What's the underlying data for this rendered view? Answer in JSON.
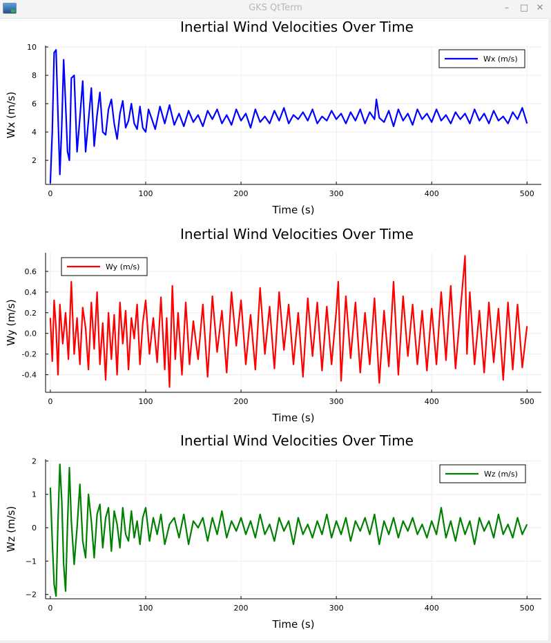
{
  "window": {
    "title": "GKS QtTerm",
    "minimize_icon": "minimize-icon",
    "maximize_icon": "maximize-icon",
    "close_icon": "close-icon",
    "app_icon": "gks-app-icon"
  },
  "chart_data": [
    {
      "type": "line",
      "title": "Inertial Wind Velocities Over Time",
      "xlabel": "Time (s)",
      "ylabel": "Wx (m/s)",
      "xlim": [
        -5,
        515
      ],
      "ylim": [
        0.3,
        10.1
      ],
      "xticks": [
        0,
        100,
        200,
        300,
        400,
        500
      ],
      "xtick_labels": [
        "0",
        "100",
        "200",
        "300",
        "400",
        "500"
      ],
      "yticks": [
        2,
        4,
        6,
        8,
        10
      ],
      "ytick_labels": [
        "2",
        "4",
        "6",
        "8",
        "10"
      ],
      "grid": true,
      "legend_position": "top-right",
      "series": [
        {
          "name": "Wx (m/s)",
          "color": "#0000ff",
          "x": [
            0,
            2,
            4,
            6,
            8,
            10,
            12,
            14,
            16,
            18,
            20,
            22,
            25,
            28,
            31,
            34,
            37,
            40,
            43,
            46,
            49,
            52,
            55,
            58,
            61,
            64,
            67,
            70,
            73,
            76,
            79,
            82,
            85,
            88,
            91,
            94,
            97,
            100,
            103,
            106,
            110,
            115,
            120,
            125,
            130,
            135,
            140,
            145,
            150,
            155,
            160,
            165,
            170,
            175,
            180,
            185,
            190,
            195,
            200,
            205,
            210,
            215,
            220,
            225,
            230,
            235,
            240,
            245,
            250,
            255,
            260,
            265,
            270,
            275,
            280,
            285,
            290,
            295,
            300,
            305,
            310,
            315,
            320,
            325,
            330,
            335,
            340,
            342,
            345,
            350,
            355,
            360,
            365,
            370,
            375,
            380,
            385,
            390,
            395,
            400,
            405,
            410,
            415,
            420,
            425,
            430,
            435,
            440,
            445,
            450,
            455,
            460,
            465,
            470,
            475,
            480,
            485,
            490,
            495,
            500
          ],
          "values": [
            0.4,
            4.0,
            9.6,
            9.8,
            5.2,
            1.0,
            4.5,
            9.1,
            6.0,
            2.6,
            2.0,
            7.8,
            8.0,
            2.6,
            5.0,
            7.6,
            2.6,
            4.8,
            7.1,
            3.0,
            5.2,
            6.8,
            4.0,
            3.8,
            5.6,
            6.3,
            4.6,
            3.5,
            5.3,
            6.2,
            4.3,
            4.8,
            6.0,
            4.6,
            4.2,
            5.8,
            4.3,
            4.0,
            5.6,
            5.0,
            4.2,
            5.8,
            4.6,
            5.9,
            4.5,
            5.3,
            4.4,
            5.5,
            4.7,
            5.2,
            4.4,
            5.5,
            4.9,
            5.6,
            4.6,
            5.2,
            4.5,
            5.6,
            4.8,
            5.3,
            4.3,
            5.6,
            4.7,
            5.1,
            4.6,
            5.5,
            4.8,
            5.7,
            4.6,
            5.2,
            4.9,
            5.4,
            4.8,
            5.6,
            4.6,
            5.1,
            4.8,
            5.5,
            4.9,
            5.3,
            4.6,
            5.4,
            4.8,
            5.6,
            4.6,
            5.4,
            4.9,
            6.3,
            5.0,
            4.7,
            5.5,
            4.4,
            5.6,
            4.8,
            5.3,
            4.5,
            5.6,
            4.9,
            5.3,
            4.7,
            5.6,
            4.8,
            5.2,
            4.6,
            5.4,
            4.9,
            5.3,
            4.6,
            5.6,
            4.8,
            5.3,
            4.6,
            5.5,
            4.8,
            5.1,
            4.6,
            5.4,
            4.9,
            5.7,
            4.6
          ]
        }
      ]
    },
    {
      "type": "line",
      "title": "Inertial Wind Velocities Over Time",
      "xlabel": "Time (s)",
      "ylabel": "Wy (m/s)",
      "xlim": [
        -5,
        515
      ],
      "ylim": [
        -0.57,
        0.78
      ],
      "xticks": [
        0,
        100,
        200,
        300,
        400,
        500
      ],
      "xtick_labels": [
        "0",
        "100",
        "200",
        "300",
        "400",
        "500"
      ],
      "yticks": [
        -0.4,
        -0.2,
        0.0,
        0.2,
        0.4,
        0.6
      ],
      "ytick_labels": [
        "-0.4",
        "-0.2",
        "0.0",
        "0.2",
        "0.4",
        "0.6"
      ],
      "grid": true,
      "legend_position": "top-left",
      "series": [
        {
          "name": "Wy (m/s)",
          "color": "#ff0000",
          "x": [
            0,
            2,
            4,
            6,
            8,
            10,
            13,
            16,
            19,
            22,
            25,
            28,
            31,
            34,
            37,
            40,
            43,
            46,
            49,
            52,
            55,
            58,
            61,
            64,
            67,
            70,
            73,
            76,
            79,
            82,
            85,
            88,
            91,
            94,
            97,
            100,
            104,
            108,
            112,
            116,
            120,
            122,
            125,
            128,
            131,
            134,
            138,
            142,
            146,
            150,
            155,
            160,
            165,
            170,
            175,
            180,
            185,
            190,
            195,
            200,
            205,
            210,
            215,
            220,
            225,
            230,
            235,
            240,
            245,
            250,
            255,
            260,
            265,
            270,
            275,
            280,
            285,
            290,
            295,
            300,
            302,
            305,
            310,
            315,
            320,
            325,
            330,
            335,
            340,
            345,
            350,
            355,
            360,
            365,
            370,
            375,
            380,
            385,
            390,
            395,
            400,
            405,
            410,
            415,
            420,
            425,
            430,
            435,
            437,
            440,
            445,
            450,
            455,
            460,
            465,
            470,
            475,
            480,
            485,
            490,
            495,
            500
          ],
          "values": [
            0.15,
            -0.27,
            0.32,
            0.05,
            -0.4,
            0.28,
            -0.1,
            0.2,
            -0.25,
            0.5,
            -0.2,
            0.15,
            -0.3,
            0.25,
            0.05,
            -0.35,
            0.3,
            -0.15,
            0.4,
            -0.3,
            0.1,
            -0.45,
            0.2,
            -0.25,
            0.18,
            -0.4,
            0.3,
            -0.1,
            0.22,
            -0.35,
            0.15,
            -0.05,
            0.28,
            -0.3,
            0.1,
            0.32,
            -0.2,
            0.15,
            -0.28,
            0.35,
            -0.35,
            0.15,
            -0.52,
            0.46,
            -0.25,
            0.2,
            -0.4,
            0.3,
            -0.3,
            0.12,
            -0.25,
            0.28,
            -0.42,
            0.36,
            -0.18,
            0.22,
            -0.38,
            0.4,
            -0.12,
            0.32,
            -0.3,
            0.18,
            -0.35,
            0.44,
            -0.2,
            0.26,
            -0.34,
            0.4,
            -0.16,
            0.28,
            -0.3,
            0.2,
            -0.42,
            0.34,
            -0.22,
            0.3,
            -0.36,
            0.26,
            -0.3,
            0.22,
            0.5,
            -0.46,
            0.36,
            -0.24,
            0.3,
            -0.38,
            0.2,
            -0.3,
            0.34,
            -0.48,
            0.22,
            -0.32,
            0.5,
            -0.4,
            0.36,
            -0.22,
            0.28,
            -0.3,
            0.22,
            -0.36,
            0.24,
            -0.3,
            0.4,
            -0.26,
            0.46,
            -0.34,
            0.2,
            0.75,
            -0.2,
            0.4,
            -0.3,
            0.22,
            -0.38,
            0.3,
            -0.28,
            0.24,
            -0.45,
            0.3,
            -0.35,
            0.28,
            -0.33,
            0.07
          ]
        }
      ]
    },
    {
      "type": "line",
      "title": "Inertial Wind Velocities Over Time",
      "xlabel": "Time (s)",
      "ylabel": "Wz (m/s)",
      "xlim": [
        -5,
        515
      ],
      "ylim": [
        -2.13,
        2.05
      ],
      "xticks": [
        0,
        100,
        200,
        300,
        400,
        500
      ],
      "xtick_labels": [
        "0",
        "100",
        "200",
        "300",
        "400",
        "500"
      ],
      "yticks": [
        -2,
        -1,
        0,
        1,
        2
      ],
      "ytick_labels": [
        "−2",
        "−1",
        "0",
        "1",
        "2"
      ],
      "grid": true,
      "legend_position": "top-right",
      "series": [
        {
          "name": "Wz (m/s)",
          "color": "#008000",
          "x": [
            0,
            2,
            4,
            6,
            8,
            10,
            12,
            14,
            16,
            18,
            20,
            22,
            25,
            28,
            31,
            34,
            37,
            40,
            43,
            46,
            49,
            52,
            55,
            58,
            61,
            64,
            67,
            70,
            73,
            76,
            79,
            82,
            85,
            88,
            91,
            94,
            97,
            100,
            104,
            108,
            112,
            116,
            120,
            125,
            130,
            135,
            140,
            145,
            150,
            155,
            160,
            165,
            170,
            175,
            180,
            185,
            190,
            195,
            200,
            205,
            210,
            215,
            220,
            225,
            230,
            235,
            240,
            245,
            250,
            255,
            260,
            265,
            270,
            275,
            280,
            285,
            290,
            295,
            300,
            305,
            310,
            315,
            320,
            325,
            330,
            335,
            340,
            345,
            350,
            355,
            360,
            365,
            370,
            375,
            380,
            385,
            390,
            395,
            400,
            405,
            410,
            415,
            420,
            425,
            430,
            435,
            440,
            445,
            450,
            455,
            460,
            465,
            470,
            475,
            480,
            485,
            490,
            495,
            500
          ],
          "values": [
            1.2,
            -0.4,
            -1.7,
            -2.05,
            0.2,
            1.9,
            0.8,
            -1.1,
            -1.9,
            0.1,
            1.8,
            0.2,
            -1.1,
            0.0,
            1.3,
            -0.4,
            -0.9,
            1.0,
            0.2,
            -0.9,
            0.4,
            0.7,
            -0.6,
            0.3,
            0.6,
            -0.7,
            0.5,
            0.1,
            -0.6,
            0.6,
            -0.2,
            -0.4,
            0.5,
            -0.3,
            0.2,
            -0.5,
            0.3,
            0.6,
            -0.4,
            0.3,
            -0.2,
            0.4,
            -0.5,
            0.1,
            0.3,
            -0.3,
            0.4,
            -0.5,
            0.2,
            0.0,
            0.3,
            -0.4,
            0.3,
            -0.2,
            0.5,
            -0.3,
            0.2,
            -0.1,
            0.3,
            -0.2,
            0.2,
            -0.3,
            0.4,
            -0.2,
            0.1,
            -0.4,
            0.3,
            -0.1,
            0.2,
            -0.5,
            0.3,
            -0.2,
            0.1,
            -0.3,
            0.2,
            -0.2,
            0.4,
            -0.3,
            0.2,
            -0.2,
            0.3,
            -0.4,
            0.2,
            -0.1,
            0.3,
            -0.2,
            0.4,
            -0.5,
            0.2,
            -0.2,
            0.3,
            -0.3,
            0.2,
            -0.1,
            0.3,
            -0.2,
            0.1,
            -0.3,
            0.2,
            -0.2,
            0.6,
            -0.3,
            0.2,
            -0.4,
            0.3,
            -0.2,
            0.2,
            -0.5,
            0.3,
            -0.1,
            0.2,
            -0.3,
            0.4,
            -0.2,
            0.1,
            -0.3,
            0.3,
            -0.2,
            0.1
          ]
        }
      ]
    }
  ]
}
